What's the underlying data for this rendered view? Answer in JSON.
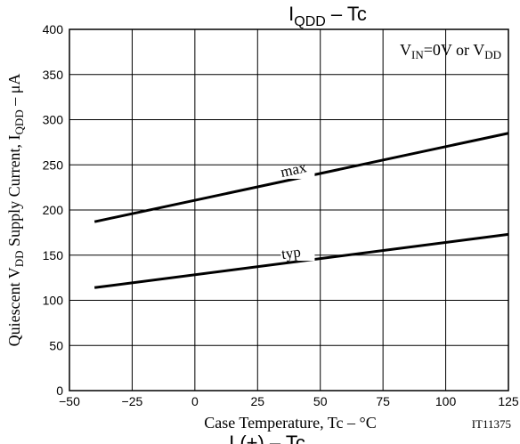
{
  "chart_data": {
    "type": "line",
    "title": {
      "main": "I",
      "sub": "QDD",
      "rest": " – Tc"
    },
    "condition": {
      "part1": "V",
      "sub1": "IN",
      "part2": "=0V or V",
      "sub2": "DD"
    },
    "xlabel": "Case Temperature, Tc  –  °C",
    "ylabel": {
      "part1": "Quiescent V",
      "sub1": "DD",
      "part2": " Supply Current, I",
      "sub2": "QDD",
      "part3": "  –  μA"
    },
    "code": "IT11375",
    "bottom_cut_text": "I    (+)  –  Tc",
    "xlim": [
      -50,
      125
    ],
    "ylim": [
      0,
      400
    ],
    "xticks": [
      -50,
      -25,
      0,
      25,
      50,
      75,
      100,
      125
    ],
    "yticks": [
      0,
      50,
      100,
      150,
      200,
      250,
      300,
      350,
      400
    ],
    "grid": true,
    "series": [
      {
        "name": "max",
        "x": [
          -40,
          125
        ],
        "y": [
          187,
          285
        ],
        "label_at": 35
      },
      {
        "name": "typ",
        "x": [
          -40,
          125
        ],
        "y": [
          114,
          173
        ],
        "label_at": 35
      }
    ]
  }
}
